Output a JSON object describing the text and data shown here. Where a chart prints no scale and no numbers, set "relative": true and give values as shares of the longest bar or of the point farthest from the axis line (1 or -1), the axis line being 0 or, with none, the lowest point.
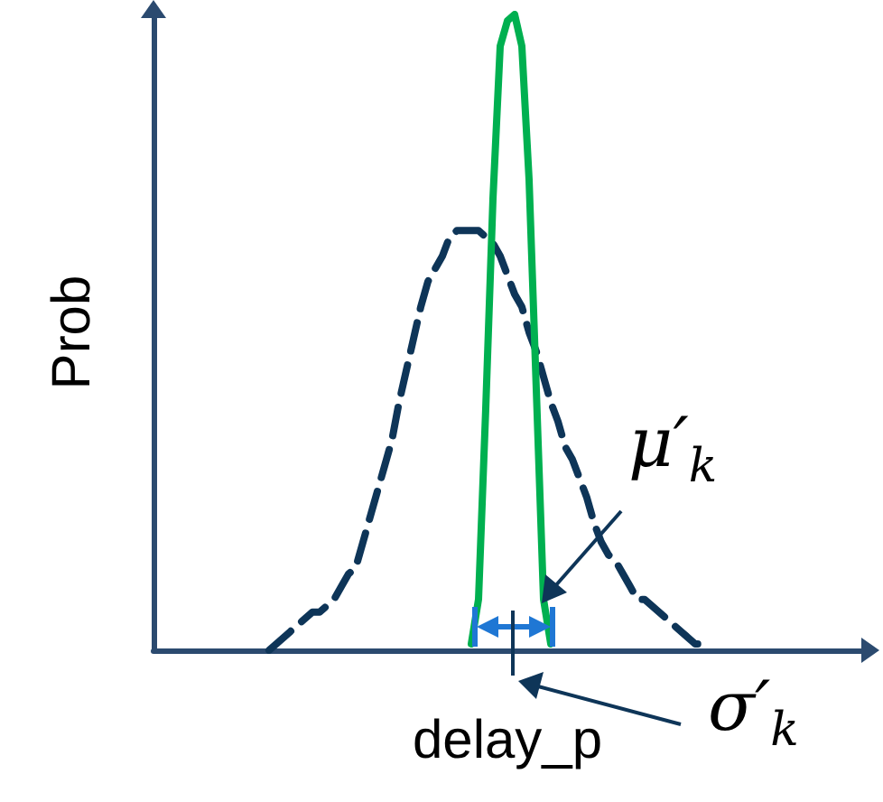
{
  "chart_data": {
    "type": "line",
    "relative": true,
    "xlabel": "delay_p",
    "ylabel": "Prob",
    "marker": "none",
    "categories": [
      null,
      null,
      null,
      null,
      null,
      null,
      null,
      null,
      null,
      null,
      null,
      null,
      null,
      null,
      null,
      null,
      null,
      null,
      null,
      null,
      null,
      null,
      null,
      null,
      null,
      null,
      null,
      null,
      null,
      null,
      null,
      null,
      null,
      null,
      null,
      null,
      null,
      null,
      null,
      null,
      null,
      null,
      null,
      null,
      null,
      null,
      null,
      null,
      null,
      null,
      null,
      null,
      null,
      null,
      null,
      null,
      null,
      null,
      null,
      null,
      null,
      null,
      null,
      null,
      null,
      null,
      null,
      null,
      null,
      null,
      null,
      null,
      null,
      null,
      null,
      null,
      null,
      null,
      null,
      null,
      null,
      null,
      null,
      null,
      null,
      null,
      null,
      null,
      null,
      null,
      null,
      null,
      null,
      null,
      null,
      null,
      null,
      null,
      null
    ],
    "series": [
      {
        "color": "#0e3558",
        "line_style": "dashed",
        "values": [
          null,
          null,
          null,
          null,
          null,
          null,
          null,
          null,
          null,
          null,
          null,
          null,
          null,
          null,
          null,
          null,
          0,
          0.01,
          0.02,
          0.03,
          0.04,
          0.05,
          0.06,
          0.06,
          0.07,
          0.08,
          0.1,
          0.12,
          0.13,
          0.17,
          0.21,
          0.25,
          0.29,
          0.33,
          0.39,
          0.44,
          0.49,
          0.54,
          0.58,
          0.6,
          0.62,
          0.65,
          0.66,
          0.66,
          0.66,
          0.66,
          0.65,
          0.64,
          0.62,
          0.59,
          0.56,
          0.54,
          0.5,
          0.47,
          0.43,
          0.39,
          0.36,
          0.32,
          0.3,
          0.27,
          0.24,
          0.2,
          0.17,
          0.15,
          0.14,
          0.12,
          0.1,
          0.08,
          0.08,
          0.07,
          0.06,
          0.05,
          0.04,
          0.03,
          0.02,
          0.01,
          0.01,
          null,
          null,
          null,
          null,
          null,
          null,
          null,
          null,
          null,
          null,
          null,
          null,
          null,
          null,
          null,
          null,
          null,
          null,
          null,
          null,
          null,
          null
        ]
      },
      {
        "color": "#00b050",
        "line_style": "solid",
        "values": [
          null,
          null,
          null,
          null,
          null,
          null,
          null,
          null,
          null,
          null,
          null,
          null,
          null,
          null,
          null,
          null,
          null,
          null,
          null,
          null,
          null,
          null,
          null,
          null,
          null,
          null,
          null,
          null,
          null,
          null,
          null,
          null,
          null,
          null,
          null,
          null,
          null,
          null,
          null,
          null,
          null,
          null,
          null,
          null,
          0.01,
          0.08,
          0.38,
          0.71,
          0.95,
          0.99,
          1,
          0.95,
          0.74,
          0.41,
          0.08,
          0.01,
          null,
          null,
          null,
          null,
          null,
          null,
          null,
          null,
          null,
          null,
          null,
          null,
          null,
          null,
          null,
          null,
          null,
          null,
          null,
          null,
          null,
          null,
          null,
          null,
          null,
          null,
          null,
          null,
          null,
          null,
          null,
          null,
          null,
          null,
          null,
          null,
          null,
          null,
          null,
          null,
          null,
          null,
          null
        ]
      }
    ],
    "annotations": [
      "μ′$_{k}$",
      "σ′$_{k}$"
    ]
  }
}
